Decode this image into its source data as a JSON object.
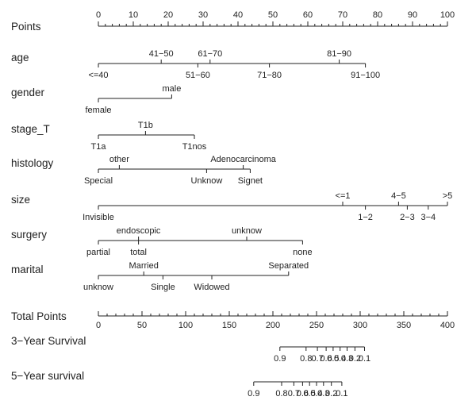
{
  "chart_data": {
    "type": "nomogram",
    "points_axis": {
      "label": "Points",
      "range": [
        0,
        100
      ],
      "major_ticks": [
        0,
        10,
        20,
        30,
        40,
        50,
        60,
        70,
        80,
        90,
        100
      ],
      "minor_step": 2
    },
    "variables": [
      {
        "name": "age",
        "levels": [
          {
            "label": "<=40",
            "points": 0,
            "side": "below"
          },
          {
            "label": "41−50",
            "points": 18,
            "side": "above"
          },
          {
            "label": "51−60",
            "points": 28.5,
            "side": "below"
          },
          {
            "label": "61−70",
            "points": 32,
            "side": "above"
          },
          {
            "label": "71−80",
            "points": 49,
            "side": "below"
          },
          {
            "label": "81−90",
            "points": 69,
            "side": "above"
          },
          {
            "label": "91−100",
            "points": 76.5,
            "side": "below"
          }
        ]
      },
      {
        "name": "gender",
        "levels": [
          {
            "label": "female",
            "points": 0,
            "side": "below"
          },
          {
            "label": "male",
            "points": 21,
            "side": "above"
          }
        ]
      },
      {
        "name": "stage_T",
        "levels": [
          {
            "label": "T1a",
            "points": 0,
            "side": "below"
          },
          {
            "label": "T1b",
            "points": 13.5,
            "side": "above"
          },
          {
            "label": "T1nos",
            "points": 27.5,
            "side": "below"
          }
        ]
      },
      {
        "name": "histology",
        "levels": [
          {
            "label": "Special",
            "points": 0,
            "side": "below"
          },
          {
            "label": "other",
            "points": 6,
            "side": "above"
          },
          {
            "label": "Unknow",
            "points": 31,
            "side": "below"
          },
          {
            "label": "Adenocarcinoma",
            "points": 41.5,
            "side": "above"
          },
          {
            "label": "Signet",
            "points": 43.5,
            "side": "below"
          }
        ]
      },
      {
        "name": "size",
        "levels": [
          {
            "label": "Invisible",
            "points": 0,
            "side": "below"
          },
          {
            "label": "<=1",
            "points": 70,
            "side": "above"
          },
          {
            "label": "1−2",
            "points": 76.5,
            "side": "below"
          },
          {
            "label": "4−5",
            "points": 86,
            "side": "above"
          },
          {
            "label": "2−3",
            "points": 88.5,
            "side": "below"
          },
          {
            "label": "3−4",
            "points": 94.5,
            "side": "below"
          },
          {
            "label": ">5",
            "points": 100,
            "side": "above"
          }
        ]
      },
      {
        "name": "surgery",
        "levels": [
          {
            "label": "partial",
            "points": 0,
            "side": "below"
          },
          {
            "label": "endoscopic",
            "points": 11.5,
            "side": "above"
          },
          {
            "label": "total",
            "points": 11.5,
            "side": "below"
          },
          {
            "label": "unknow",
            "points": 42.5,
            "side": "above"
          },
          {
            "label": "none",
            "points": 58.5,
            "side": "below"
          }
        ]
      },
      {
        "name": "marital",
        "levels": [
          {
            "label": "unknow",
            "points": 0,
            "side": "below"
          },
          {
            "label": "Married",
            "points": 13,
            "side": "above"
          },
          {
            "label": "Single",
            "points": 18.5,
            "side": "below"
          },
          {
            "label": "Widowed",
            "points": 32.5,
            "side": "below"
          },
          {
            "label": "Separated",
            "points": 54.5,
            "side": "above"
          }
        ]
      }
    ],
    "total_points_axis": {
      "label": "Total Points",
      "range": [
        0,
        400
      ],
      "major_ticks": [
        0,
        50,
        100,
        150,
        200,
        250,
        300,
        350,
        400
      ],
      "minor_step": 10
    },
    "survival_axes": [
      {
        "label": "3−Year Survival",
        "ticks": [
          {
            "label": "0.9",
            "total_points": 208
          },
          {
            "label": "0.8",
            "total_points": 238
          },
          {
            "label": "0.7",
            "total_points": 251
          },
          {
            "label": "0.6",
            "total_points": 261
          },
          {
            "label": "0.5",
            "total_points": 269
          },
          {
            "label": "0.4",
            "total_points": 277
          },
          {
            "label": "0.3",
            "total_points": 285
          },
          {
            "label": "0.2",
            "total_points": 294
          },
          {
            "label": "0.1",
            "total_points": 305
          }
        ]
      },
      {
        "label": "5−Year survival",
        "ticks": [
          {
            "label": "0.9",
            "total_points": 178
          },
          {
            "label": "0.8",
            "total_points": 210
          },
          {
            "label": "0.7",
            "total_points": 224
          },
          {
            "label": "0.6",
            "total_points": 234
          },
          {
            "label": "0.5",
            "total_points": 242
          },
          {
            "label": "0.4",
            "total_points": 250
          },
          {
            "label": "0.3",
            "total_points": 258
          },
          {
            "label": "0.2",
            "total_points": 267
          },
          {
            "label": "0.1",
            "total_points": 279
          }
        ]
      }
    ]
  }
}
